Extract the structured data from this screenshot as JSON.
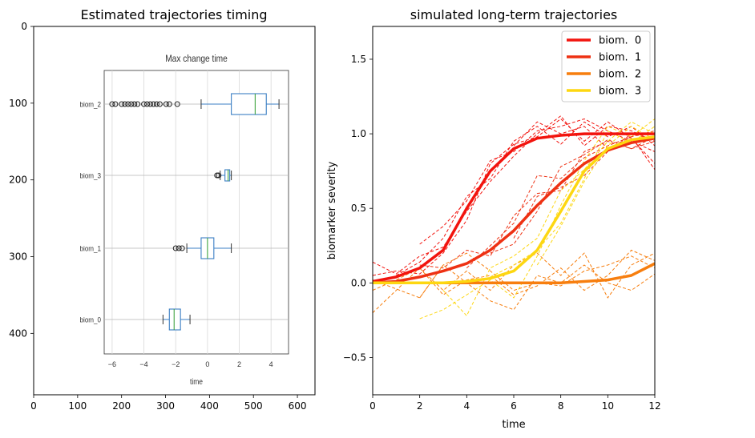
{
  "chart_data": [
    {
      "type": "box",
      "title": "Estimated trajectories timing",
      "x_ticks": [
        0,
        100,
        200,
        300,
        400,
        500,
        600
      ],
      "y_ticks": [
        0,
        100,
        200,
        300,
        400
      ],
      "xlim": [
        0,
        640
      ],
      "ylim": [
        480,
        0
      ],
      "inner": {
        "title": "Max change time",
        "xlabel": "time",
        "x_ticks": [
          -6,
          -4,
          -2,
          0,
          2,
          4
        ],
        "xlim": [
          -6.5,
          5.1
        ],
        "boxes": [
          {
            "name": "biom_2",
            "whisker_low": -0.4,
            "q1": 1.5,
            "median": 3.0,
            "q3": 3.7,
            "whisker_high": 4.5,
            "outliers": [
              -6.0,
              -5.8,
              -5.4,
              -5.2,
              -5.0,
              -4.8,
              -4.6,
              -4.4,
              -4.0,
              -3.8,
              -3.6,
              -3.4,
              -3.2,
              -3.0,
              -2.6,
              -2.4,
              -1.9
            ]
          },
          {
            "name": "biom_3",
            "whisker_low": 0.8,
            "q1": 1.1,
            "median": 1.3,
            "q3": 1.4,
            "whisker_high": 1.5,
            "outliers": [
              0.6,
              0.7
            ]
          },
          {
            "name": "biom_1",
            "whisker_low": -1.3,
            "q1": -0.4,
            "median": 0.0,
            "q3": 0.4,
            "whisker_high": 1.5,
            "outliers": [
              -2.0,
              -1.8,
              -1.6
            ]
          },
          {
            "name": "biom_0",
            "whisker_low": -2.8,
            "q1": -2.4,
            "median": -2.1,
            "q3": -1.7,
            "whisker_high": -1.1,
            "outliers": []
          }
        ]
      }
    },
    {
      "type": "line",
      "title": "simulated long-term trajectories",
      "xlabel": "time",
      "ylabel": "biomarker severity",
      "xlim": [
        0,
        12
      ],
      "ylim": [
        -0.75,
        1.72
      ],
      "x_ticks": [
        0,
        2,
        4,
        6,
        8,
        10,
        12
      ],
      "y_ticks": [
        -0.5,
        0.0,
        0.5,
        1.0,
        1.5
      ],
      "y_tick_labels": [
        "−0.5",
        "0.0",
        "0.5",
        "1.0",
        "1.5"
      ],
      "legend": "top-right",
      "series": [
        {
          "name": "biom.  0",
          "color": "#f2140e",
          "x": [
            0,
            1,
            2,
            3,
            4,
            5,
            6,
            7,
            8,
            9,
            10,
            11,
            12
          ],
          "y": [
            0.01,
            0.04,
            0.1,
            0.22,
            0.5,
            0.75,
            0.9,
            0.97,
            0.99,
            1.0,
            1.0,
            1.0,
            1.0
          ],
          "samples": [
            [
              [
                2,
                0.26
              ],
              [
                3,
                0.38
              ],
              [
                4,
                0.55
              ],
              [
                5,
                0.82
              ],
              [
                6,
                0.88
              ],
              [
                7,
                1.02
              ],
              [
                8,
                1.05
              ],
              [
                9,
                1.1
              ],
              [
                10,
                1.02
              ],
              [
                11,
                0.95
              ],
              [
                12,
                0.88
              ]
            ],
            [
              [
                1,
                0.05
              ],
              [
                2,
                0.14
              ],
              [
                3,
                0.3
              ],
              [
                4,
                0.58
              ],
              [
                5,
                0.7
              ],
              [
                6,
                0.95
              ],
              [
                7,
                1.05
              ],
              [
                8,
                0.93
              ],
              [
                9,
                1.08
              ],
              [
                10,
                0.98
              ],
              [
                11,
                1.05
              ],
              [
                12,
                0.92
              ]
            ],
            [
              [
                0,
                0.05
              ],
              [
                1,
                0.08
              ],
              [
                2,
                0.06
              ],
              [
                3,
                0.2
              ],
              [
                4,
                0.42
              ],
              [
                5,
                0.8
              ],
              [
                6,
                0.93
              ],
              [
                7,
                0.98
              ],
              [
                8,
                1.1
              ],
              [
                9,
                0.95
              ],
              [
                10,
                1.08
              ],
              [
                11,
                0.97
              ],
              [
                12,
                0.8
              ]
            ],
            [
              [
                0,
                0.14
              ],
              [
                1,
                0.06
              ],
              [
                2,
                0.18
              ],
              [
                3,
                0.24
              ],
              [
                4,
                0.48
              ],
              [
                5,
                0.68
              ],
              [
                6,
                0.85
              ],
              [
                7,
                1.0
              ],
              [
                8,
                1.12
              ],
              [
                9,
                0.92
              ],
              [
                10,
                1.05
              ],
              [
                11,
                1.02
              ],
              [
                12,
                0.95
              ]
            ],
            [
              [
                6,
                0.92
              ],
              [
                7,
                1.08
              ],
              [
                8,
                1.0
              ],
              [
                9,
                1.05
              ],
              [
                10,
                0.9
              ],
              [
                11,
                0.98
              ],
              [
                12,
                0.76
              ]
            ]
          ]
        },
        {
          "name": "biom.  1",
          "color": "#ee3113",
          "x": [
            0,
            1,
            2,
            3,
            4,
            5,
            6,
            7,
            8,
            9,
            10,
            11,
            12
          ],
          "y": [
            0.0,
            0.01,
            0.04,
            0.08,
            0.13,
            0.22,
            0.35,
            0.52,
            0.67,
            0.8,
            0.89,
            0.94,
            0.97
          ],
          "samples": [
            [
              [
                2,
                0.12
              ],
              [
                3,
                0.1
              ],
              [
                4,
                0.22
              ],
              [
                5,
                0.18
              ],
              [
                6,
                0.45
              ],
              [
                7,
                0.6
              ],
              [
                8,
                0.62
              ],
              [
                9,
                0.88
              ],
              [
                10,
                0.95
              ],
              [
                11,
                0.9
              ],
              [
                12,
                0.95
              ]
            ],
            [
              [
                4,
                0.1
              ],
              [
                5,
                0.25
              ],
              [
                6,
                0.4
              ],
              [
                7,
                0.72
              ],
              [
                8,
                0.7
              ],
              [
                9,
                0.84
              ],
              [
                10,
                0.92
              ],
              [
                11,
                0.98
              ],
              [
                12,
                1.02
              ]
            ],
            [
              [
                5,
                0.2
              ],
              [
                6,
                0.26
              ],
              [
                7,
                0.48
              ],
              [
                8,
                0.78
              ],
              [
                9,
                0.86
              ],
              [
                10,
                0.96
              ],
              [
                11,
                0.9
              ],
              [
                12,
                0.98
              ]
            ],
            [
              [
                6,
                0.3
              ],
              [
                7,
                0.58
              ],
              [
                8,
                0.64
              ],
              [
                9,
                0.72
              ],
              [
                10,
                0.88
              ],
              [
                11,
                1.0
              ],
              [
                12,
                0.96
              ]
            ]
          ]
        },
        {
          "name": "biom.  2",
          "color": "#f77e0e",
          "x": [
            0,
            1,
            2,
            3,
            4,
            5,
            6,
            7,
            8,
            9,
            10,
            11,
            12
          ],
          "y": [
            0.0,
            0.0,
            0.0,
            0.0,
            0.0,
            0.0,
            0.0,
            0.0,
            0.0,
            0.01,
            0.02,
            0.05,
            0.13
          ],
          "samples": [
            [
              [
                0,
                -0.2
              ],
              [
                1,
                -0.05
              ],
              [
                2,
                0.1
              ],
              [
                3,
                -0.05
              ],
              [
                4,
                0.08
              ],
              [
                5,
                -0.05
              ],
              [
                6,
                0.12
              ],
              [
                7,
                0.2
              ],
              [
                8,
                0.05
              ],
              [
                9,
                0.2
              ],
              [
                10,
                -0.1
              ],
              [
                11,
                0.12
              ],
              [
                12,
                0.2
              ]
            ],
            [
              [
                0,
                -0.05
              ],
              [
                1,
                0.02
              ],
              [
                2,
                0.1
              ],
              [
                3,
                -0.08
              ],
              [
                4,
                0.02
              ],
              [
                5,
                0.05
              ],
              [
                6,
                -0.08
              ],
              [
                7,
                -0.02
              ],
              [
                8,
                0.1
              ],
              [
                9,
                -0.05
              ],
              [
                10,
                0.05
              ],
              [
                11,
                0.22
              ],
              [
                12,
                0.15
              ]
            ],
            [
              [
                2,
                -0.1
              ],
              [
                3,
                0.12
              ],
              [
                4,
                0.0
              ],
              [
                5,
                -0.12
              ],
              [
                6,
                -0.18
              ],
              [
                7,
                0.05
              ],
              [
                8,
                0.0
              ],
              [
                9,
                0.12
              ],
              [
                10,
                0.0
              ],
              [
                11,
                -0.05
              ],
              [
                12,
                0.06
              ]
            ],
            [
              [
                0,
                0.02
              ],
              [
                1,
                -0.04
              ],
              [
                2,
                -0.1
              ],
              [
                3,
                0.12
              ],
              [
                4,
                0.2
              ],
              [
                5,
                0.08
              ],
              [
                6,
                -0.05
              ],
              [
                7,
                0.0
              ],
              [
                8,
                -0.02
              ],
              [
                9,
                0.08
              ],
              [
                10,
                0.12
              ],
              [
                11,
                0.18
              ],
              [
                12,
                0.1
              ]
            ]
          ]
        },
        {
          "name": "biom.  3",
          "color": "#fdd711",
          "x": [
            0,
            1,
            2,
            3,
            4,
            5,
            6,
            7,
            8,
            9,
            10,
            11,
            12
          ],
          "y": [
            0.0,
            0.0,
            0.0,
            0.0,
            0.01,
            0.03,
            0.08,
            0.22,
            0.48,
            0.75,
            0.9,
            0.96,
            0.98
          ],
          "samples": [
            [
              [
                2,
                -0.24
              ],
              [
                3,
                -0.18
              ],
              [
                4,
                -0.08
              ],
              [
                5,
                0.02
              ],
              [
                6,
                -0.1
              ],
              [
                7,
                0.18
              ],
              [
                8,
                0.52
              ],
              [
                9,
                0.82
              ],
              [
                10,
                1.05
              ],
              [
                11,
                0.98
              ],
              [
                12,
                1.1
              ]
            ],
            [
              [
                3,
                -0.05
              ],
              [
                4,
                -0.22
              ],
              [
                5,
                0.1
              ],
              [
                6,
                0.18
              ],
              [
                7,
                0.3
              ],
              [
                8,
                0.62
              ],
              [
                9,
                0.76
              ],
              [
                10,
                0.95
              ],
              [
                11,
                1.08
              ],
              [
                12,
                1.0
              ]
            ],
            [
              [
                5,
                0.04
              ],
              [
                6,
                0.12
              ],
              [
                7,
                0.22
              ],
              [
                8,
                0.4
              ],
              [
                9,
                0.7
              ],
              [
                10,
                1.02
              ],
              [
                11,
                0.94
              ],
              [
                12,
                1.05
              ]
            ],
            [
              [
                7,
                0.12
              ],
              [
                8,
                0.38
              ],
              [
                9,
                0.68
              ],
              [
                10,
                0.92
              ],
              [
                11,
                1.05
              ],
              [
                12,
                0.96
              ]
            ]
          ]
        }
      ]
    }
  ]
}
